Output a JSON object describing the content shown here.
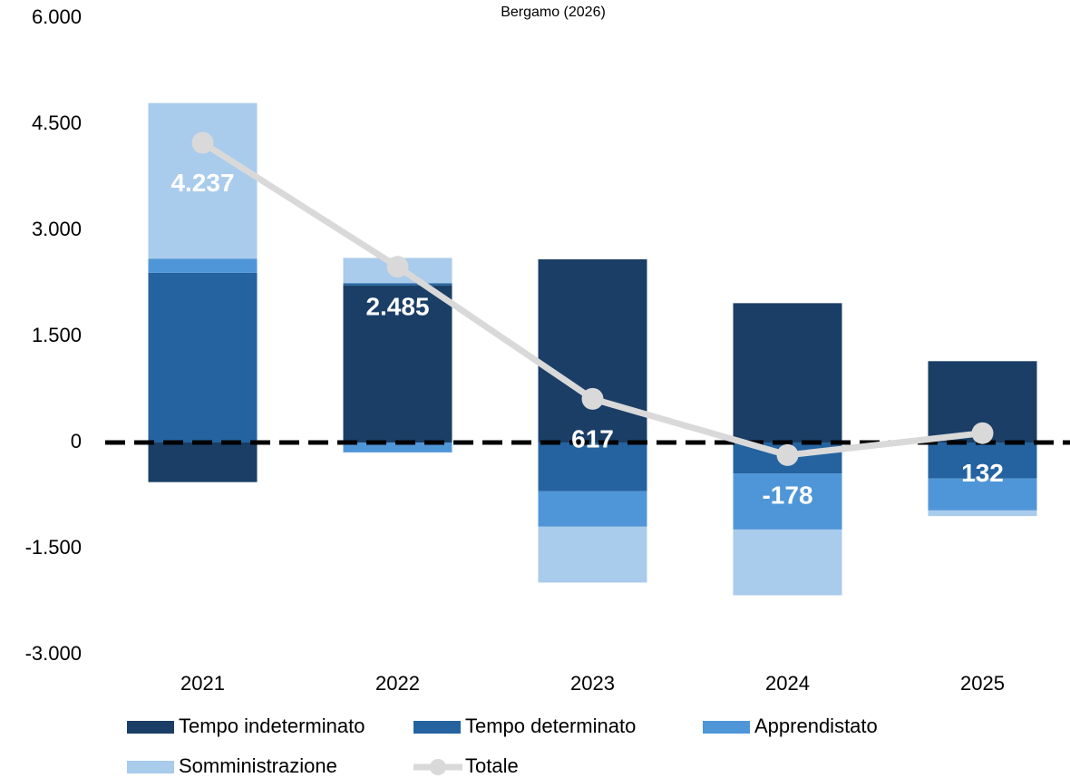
{
  "chart_data": {
    "type": "bar",
    "stacked": true,
    "title": "Bergamo (2026)",
    "categories": [
      "2021",
      "2022",
      "2023",
      "2024",
      "2025"
    ],
    "series": [
      {
        "name": "Tempo indeterminato",
        "color": "#1a3e66",
        "values": [
          -560,
          2220,
          2590,
          1970,
          1150
        ]
      },
      {
        "name": "Tempo determinato",
        "color": "#2463a0",
        "values": [
          2400,
          30,
          -690,
          -440,
          -510
        ]
      },
      {
        "name": "Apprendistato",
        "color": "#4f96d8",
        "values": [
          200,
          -140,
          -500,
          -790,
          -450
        ]
      },
      {
        "name": "Somministrazione",
        "color": "#a9cbec",
        "values": [
          2200,
          360,
          -790,
          -930,
          -80
        ]
      },
      {
        "name": "Totale",
        "type": "line",
        "color": "#d9d9d9",
        "values": [
          4237,
          2485,
          617,
          -178,
          132
        ],
        "value_labels": [
          "4.237",
          "2.485",
          "617",
          "-178",
          "132"
        ]
      }
    ],
    "ylim": [
      -3000,
      6000
    ],
    "yticks": [
      {
        "value": -3000,
        "label": "-3.000"
      },
      {
        "value": -1500,
        "label": "-1.500"
      },
      0,
      {
        "value": 1500,
        "label": "1.500"
      },
      {
        "value": 3000,
        "label": "3.000"
      },
      {
        "value": 4500,
        "label": "4.500"
      },
      {
        "value": 6000,
        "label": "6.000"
      }
    ],
    "grid": false,
    "zero_line": true
  }
}
